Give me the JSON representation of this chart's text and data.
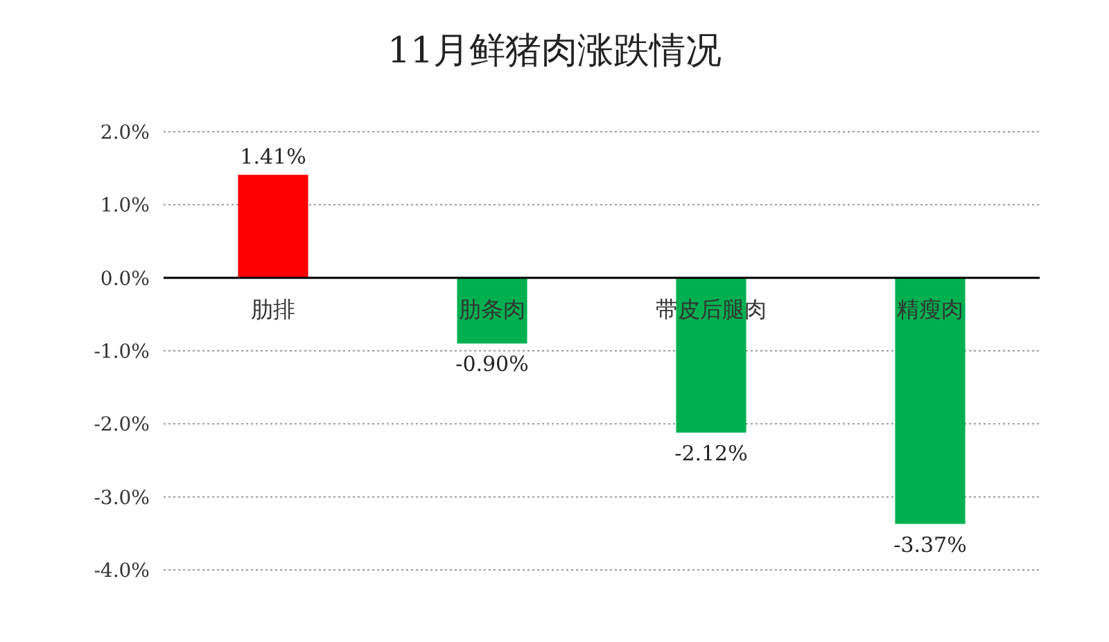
{
  "chart_data": {
    "type": "bar",
    "title": "11月鲜猪肉涨跌情况",
    "categories": [
      "肋排",
      "肋条肉",
      "带皮后腿肉",
      "精瘦肉"
    ],
    "values": [
      1.41,
      -0.9,
      -2.12,
      -3.37
    ],
    "colors": [
      "#ff0000",
      "#00b050",
      "#00b050",
      "#00b050"
    ],
    "value_labels": [
      "1.41%",
      "-0.90%",
      "-2.12%",
      "-3.37%"
    ],
    "ylim": [
      -4,
      2
    ],
    "yticks": [
      {
        "value": 2,
        "label": "2.0%"
      },
      {
        "value": 1,
        "label": "1.0%"
      },
      {
        "value": 0,
        "label": "0.0%"
      },
      {
        "value": -1,
        "label": "-1.0%"
      },
      {
        "value": -2,
        "label": "-2.0%"
      },
      {
        "value": -3,
        "label": "-3.0%"
      },
      {
        "value": -4,
        "label": "-4.0%"
      }
    ],
    "grid": "y"
  }
}
